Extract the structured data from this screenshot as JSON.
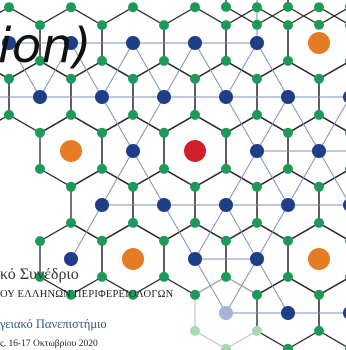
{
  "poster": {
    "title_fragment": "ion)",
    "line1": "κό Συνέδριο",
    "line2": "ΟΥ ΕΛΛΗΝΩΝ ΠΕΡΙΦΕΡΕΙΟΛΟΓΩΝ",
    "line3": "γειακό Πανεπιστήμιο",
    "line4": "ς. 16-17 Οκτωβρίου 2020"
  },
  "colors": {
    "hex_stroke": "#2a2a2a",
    "link_stroke": "#7f8fbf",
    "vertex_dot": "#1d9a5a",
    "center_dot": "#1e3f87",
    "accent_orange": "#e57b23",
    "accent_red": "#cf1f2a",
    "faded_green": "#a7d9b8",
    "faded_blue": "#a9b3d6"
  }
}
